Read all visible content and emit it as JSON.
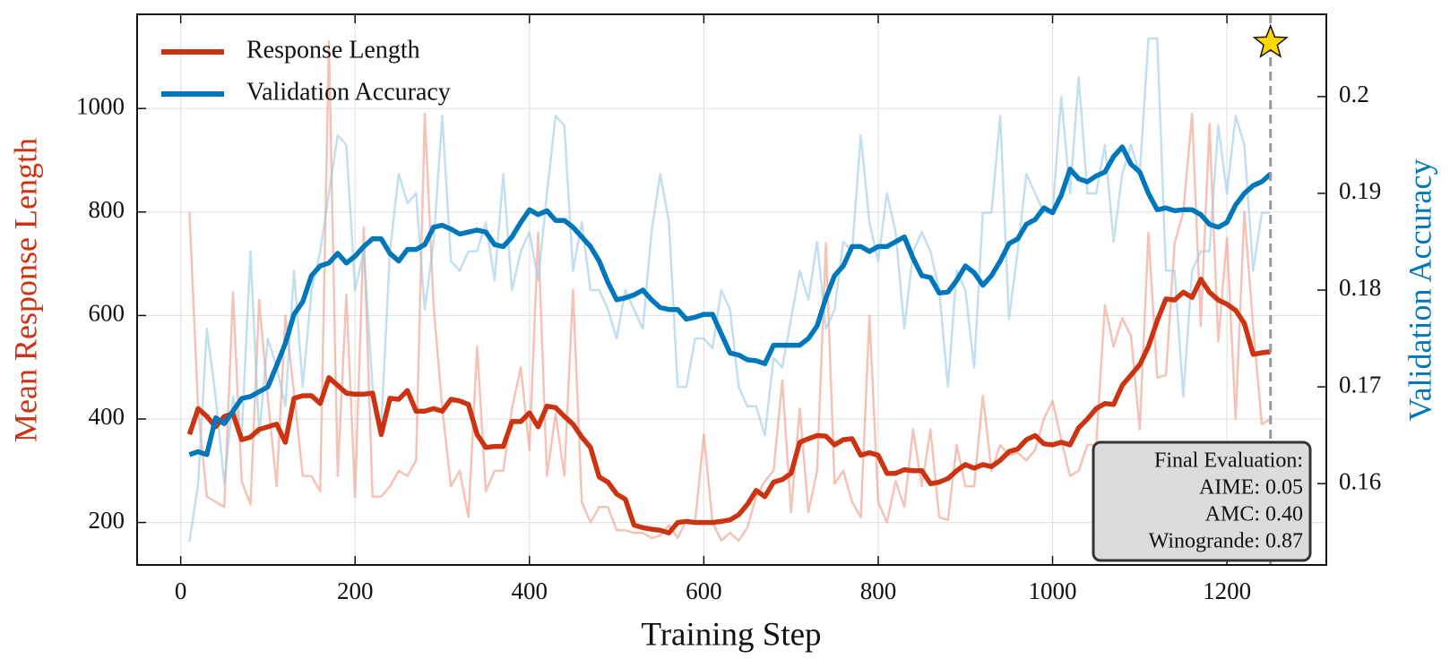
{
  "chart_data": {
    "type": "line",
    "x_label": "Training Step",
    "y_label": "Mean Response Length",
    "y2_label": "Validation Accuracy",
    "x": [
      10,
      20,
      30,
      40,
      50,
      60,
      70,
      80,
      90,
      100,
      110,
      120,
      130,
      140,
      150,
      160,
      170,
      180,
      190,
      200,
      210,
      220,
      230,
      240,
      250,
      260,
      270,
      280,
      290,
      300,
      310,
      320,
      330,
      340,
      350,
      360,
      370,
      380,
      390,
      400,
      410,
      420,
      430,
      440,
      450,
      460,
      470,
      480,
      490,
      500,
      510,
      520,
      530,
      540,
      550,
      560,
      570,
      580,
      590,
      600,
      610,
      620,
      630,
      640,
      650,
      660,
      670,
      680,
      690,
      700,
      710,
      720,
      730,
      740,
      750,
      760,
      770,
      780,
      790,
      800,
      810,
      820,
      830,
      840,
      850,
      860,
      870,
      880,
      890,
      900,
      910,
      920,
      930,
      940,
      950,
      960,
      970,
      980,
      990,
      1000,
      1010,
      1020,
      1030,
      1040,
      1050,
      1060,
      1070,
      1080,
      1090,
      1100,
      1110,
      1120,
      1130,
      1140,
      1150,
      1160,
      1170,
      1180,
      1190,
      1200,
      1210,
      1220,
      1230,
      1240,
      1250
    ],
    "series": [
      {
        "name": "Response Length",
        "color": "#cc3311",
        "raw_color": "#ee9988",
        "values": [
          370,
          420,
          405,
          385,
          405,
          410,
          360,
          365,
          380,
          385,
          390,
          355,
          440,
          445,
          445,
          430,
          480,
          465,
          450,
          448,
          448,
          450,
          370,
          440,
          438,
          455,
          415,
          415,
          420,
          415,
          438,
          435,
          428,
          370,
          345,
          347,
          347,
          395,
          395,
          412,
          385,
          425,
          422,
          405,
          390,
          365,
          345,
          288,
          278,
          255,
          245,
          195,
          190,
          187,
          185,
          180,
          200,
          202,
          200,
          200,
          200,
          202,
          205,
          215,
          235,
          262,
          250,
          278,
          283,
          295,
          355,
          362,
          368,
          367,
          350,
          360,
          362,
          330,
          335,
          330,
          295,
          295,
          302,
          300,
          300,
          275,
          278,
          285,
          300,
          312,
          305,
          312,
          308,
          320,
          337,
          342,
          360,
          368,
          352,
          350,
          355,
          350,
          383,
          400,
          420,
          430,
          428,
          465,
          485,
          505,
          540,
          590,
          632,
          630,
          645,
          635,
          670,
          645,
          630,
          622,
          610,
          585,
          525,
          528,
          530
        ],
        "raw_values": [
          800,
          420,
          250,
          240,
          230,
          645,
          280,
          235,
          630,
          440,
          270,
          600,
          450,
          290,
          290,
          260,
          1130,
          290,
          640,
          250,
          770,
          250,
          250,
          270,
          300,
          290,
          320,
          990,
          620,
          420,
          270,
          300,
          210,
          540,
          260,
          300,
          300,
          420,
          500,
          340,
          760,
          290,
          410,
          290,
          650,
          240,
          200,
          230,
          230,
          185,
          185,
          180,
          180,
          170,
          175,
          195,
          170,
          205,
          200,
          370,
          200,
          165,
          180,
          165,
          190,
          250,
          280,
          300,
          475,
          220,
          420,
          220,
          300,
          740,
          275,
          300,
          240,
          210,
          600,
          240,
          200,
          280,
          230,
          380,
          270,
          380,
          210,
          205,
          350,
          270,
          270,
          445,
          300,
          350,
          330,
          335,
          320,
          340,
          400,
          435,
          360,
          290,
          300,
          350,
          350,
          620,
          540,
          595,
          560,
          380,
          760,
          480,
          485,
          740,
          800,
          990,
          580,
          970,
          550,
          750,
          400,
          800,
          580,
          390,
          400
        ]
      },
      {
        "name": "Validation Accuracy",
        "color": "#0077bb",
        "raw_color": "#99c9e3",
        "axis": "y2",
        "values": [
          0.163,
          0.1633,
          0.163,
          0.1668,
          0.1662,
          0.1675,
          0.1688,
          0.169,
          0.1695,
          0.17,
          0.1722,
          0.1745,
          0.1775,
          0.1788,
          0.1815,
          0.1825,
          0.1828,
          0.1838,
          0.1828,
          0.1835,
          0.1845,
          0.1853,
          0.1853,
          0.1838,
          0.183,
          0.1842,
          0.1842,
          0.1847,
          0.1865,
          0.1867,
          0.1863,
          0.1858,
          0.186,
          0.1862,
          0.186,
          0.1847,
          0.1845,
          0.1855,
          0.187,
          0.1883,
          0.1878,
          0.1882,
          0.1872,
          0.1872,
          0.1865,
          0.1855,
          0.1845,
          0.183,
          0.1808,
          0.179,
          0.1792,
          0.1795,
          0.18,
          0.179,
          0.1782,
          0.178,
          0.178,
          0.177,
          0.1772,
          0.1775,
          0.1775,
          0.1755,
          0.1735,
          0.1733,
          0.1728,
          0.1727,
          0.1724,
          0.1743,
          0.1743,
          0.1743,
          0.1743,
          0.175,
          0.1763,
          0.1792,
          0.1815,
          0.1825,
          0.1845,
          0.1845,
          0.184,
          0.1845,
          0.1845,
          0.185,
          0.1855,
          0.1833,
          0.1815,
          0.1813,
          0.1797,
          0.1798,
          0.181,
          0.1825,
          0.1818,
          0.1805,
          0.1815,
          0.183,
          0.1848,
          0.1853,
          0.1868,
          0.1873,
          0.1885,
          0.188,
          0.1898,
          0.1925,
          0.1915,
          0.1912,
          0.1918,
          0.1922,
          0.1938,
          0.1948,
          0.193,
          0.1922,
          0.19,
          0.1883,
          0.1885,
          0.1882,
          0.1883,
          0.1883,
          0.1878,
          0.1868,
          0.1865,
          0.187,
          0.1888,
          0.19,
          0.1908,
          0.1912,
          0.192
        ],
        "raw_values": [
          0.154,
          0.16,
          0.176,
          0.169,
          0.16,
          0.169,
          0.165,
          0.184,
          0.165,
          0.175,
          0.172,
          0.168,
          0.182,
          0.17,
          0.18,
          0.184,
          0.19,
          0.196,
          0.195,
          0.18,
          0.184,
          0.17,
          0.166,
          0.184,
          0.192,
          0.189,
          0.19,
          0.178,
          0.185,
          0.198,
          0.183,
          0.182,
          0.184,
          0.184,
          0.187,
          0.181,
          0.192,
          0.18,
          0.184,
          0.186,
          0.181,
          0.19,
          0.198,
          0.197,
          0.182,
          0.187,
          0.18,
          0.18,
          0.178,
          0.175,
          0.18,
          0.178,
          0.176,
          0.186,
          0.192,
          0.187,
          0.17,
          0.17,
          0.175,
          0.175,
          0.174,
          0.18,
          0.178,
          0.17,
          0.168,
          0.168,
          0.165,
          0.173,
          0.172,
          0.177,
          0.182,
          0.179,
          0.185,
          0.176,
          0.178,
          0.185,
          0.184,
          0.196,
          0.187,
          0.183,
          0.19,
          0.186,
          0.176,
          0.184,
          0.186,
          0.184,
          0.18,
          0.17,
          0.182,
          0.18,
          0.172,
          0.188,
          0.188,
          0.198,
          0.177,
          0.184,
          0.192,
          0.19,
          0.188,
          0.188,
          0.2,
          0.19,
          0.202,
          0.19,
          0.19,
          0.195,
          0.185,
          0.192,
          0.195,
          0.192,
          0.206,
          0.206,
          0.182,
          0.182,
          0.169,
          0.182,
          0.184,
          0.184,
          0.197,
          0.19,
          0.198,
          0.195,
          0.182,
          0.188,
          0.188
        ]
      }
    ],
    "xlim": [
      -50,
      1314
    ],
    "xticks": [
      0,
      200,
      400,
      600,
      800,
      1000,
      1200
    ],
    "ylim": [
      118,
      1182
    ],
    "yticks": [
      200,
      400,
      600,
      800,
      1000
    ],
    "y2lim": [
      0.1516,
      0.2085
    ],
    "y2ticks": [
      0.16,
      0.17,
      0.18,
      0.19,
      0.2
    ],
    "grid": true,
    "legend": "upper left",
    "vline": {
      "x": 1250,
      "color": "#999999"
    },
    "star": {
      "x": 1250,
      "y": 1127,
      "color": "#ffd700"
    },
    "annotation": [
      "Final Evaluation:",
      "AIME: 0.05",
      "AMC: 0.40",
      "Winogrande: 0.87"
    ]
  }
}
